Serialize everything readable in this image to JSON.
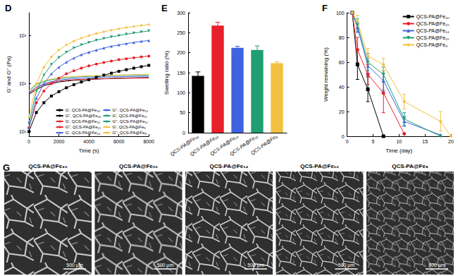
{
  "chart_data": [
    {
      "title": "D",
      "type": "line",
      "x_label": "Time (s)",
      "y_label": "G' and G'' (Pa)",
      "log": "y",
      "xlim": [
        0,
        8000
      ],
      "xticks": [
        0,
        2000,
        4000,
        6000,
        8000
      ],
      "ylim": [
        8,
        3000
      ],
      "yticks": [
        {
          "value": 10,
          "label": "10¹"
        },
        {
          "value": 100,
          "label": "10²"
        },
        {
          "value": 1000,
          "label": "10³"
        }
      ],
      "grid": false,
      "legend": "lower right",
      "x": [
        0,
        500,
        1000,
        1500,
        2000,
        2500,
        3000,
        3500,
        4000,
        4500,
        5000,
        5500,
        6000,
        6500,
        7000,
        7500,
        8000
      ],
      "series": [
        {
          "name": "G', QCS-PA@Fe₄₀",
          "color": "#000000",
          "marker": "square",
          "line_style": "solid",
          "values": [
            10,
            25,
            40,
            55,
            68,
            82,
            95,
            108,
            120,
            135,
            150,
            165,
            180,
            195,
            210,
            225,
            240
          ]
        },
        {
          "name": "G'', QCS-PA@Fe₄₀",
          "color": "#000000",
          "marker": "none",
          "line_style": "solid",
          "values": [
            60,
            75,
            90,
            100,
            108,
            113,
            117,
            120,
            122,
            124,
            126,
            128,
            130,
            131,
            132,
            133,
            134
          ]
        },
        {
          "name": "G', QCS-PA@Fe₂₀",
          "color": "#e8202a",
          "marker": "circle",
          "line_style": "solid",
          "values": [
            12,
            40,
            70,
            100,
            130,
            160,
            185,
            210,
            235,
            255,
            275,
            295,
            315,
            330,
            345,
            360,
            375
          ]
        },
        {
          "name": "G'', QCS-PA@Fe₂₀",
          "color": "#e8202a",
          "marker": "none",
          "line_style": "solid",
          "values": [
            62,
            80,
            95,
            105,
            112,
            117,
            120,
            122,
            124,
            125,
            126,
            127,
            128,
            129,
            130,
            130,
            131
          ]
        },
        {
          "name": "G', QCS-PA@Fe₁₄",
          "color": "#3f63e0",
          "marker": "triangle",
          "line_style": "solid",
          "values": [
            12,
            50,
            100,
            160,
            220,
            280,
            340,
            400,
            450,
            500,
            550,
            600,
            640,
            680,
            720,
            760,
            790
          ]
        },
        {
          "name": "G'', QCS-PA@Fe₁₄",
          "color": "#3f63e0",
          "marker": "none",
          "line_style": "solid",
          "values": [
            65,
            85,
            100,
            110,
            118,
            123,
            127,
            130,
            132,
            134,
            136,
            138,
            139,
            140,
            141,
            142,
            143
          ]
        },
        {
          "name": "G', QCS-PA@Fe₁₀",
          "color": "#1e9e72",
          "marker": "inverted triangle",
          "line_style": "solid",
          "values": [
            15,
            70,
            150,
            250,
            350,
            450,
            550,
            640,
            720,
            800,
            870,
            940,
            1000,
            1070,
            1130,
            1190,
            1250
          ]
        },
        {
          "name": "G'', QCS-PA@Fe₁₀",
          "color": "#1e9e72",
          "marker": "none",
          "line_style": "solid",
          "values": [
            70,
            95,
            110,
            120,
            127,
            132,
            136,
            139,
            141,
            143,
            145,
            147,
            148,
            149,
            150,
            151,
            152
          ]
        },
        {
          "name": "G', QCS-PA@Fe₈",
          "color": "#f2c040",
          "marker": "diamond",
          "line_style": "solid",
          "values": [
            20,
            100,
            220,
            360,
            500,
            640,
            770,
            890,
            1000,
            1100,
            1200,
            1300,
            1390,
            1470,
            1550,
            1630,
            1700
          ]
        },
        {
          "name": "G'', QCS-PA@Fe₈",
          "color": "#f2c040",
          "marker": "none",
          "line_style": "solid",
          "values": [
            72,
            100,
            115,
            125,
            132,
            137,
            140,
            143,
            145,
            147,
            148,
            150,
            151,
            152,
            153,
            154,
            155
          ]
        }
      ]
    },
    {
      "title": "E",
      "type": "bar",
      "y_label": "Swelling ratio (%)",
      "categories": [
        "QCS-PA@Fe₄₀",
        "QCS-PA@Fe₂₀",
        "QCS-PA@Fe₁₄",
        "QCS-PA@Fe₁₀",
        "QCS-PA@Fe₈"
      ],
      "values": [
        142,
        268,
        212,
        207,
        174
      ],
      "errors": [
        10,
        8,
        4,
        10,
        3
      ],
      "colors": [
        "#000000",
        "#e8202a",
        "#3f63e0",
        "#1e9e72",
        "#f2c040"
      ],
      "ylim": [
        0,
        300
      ],
      "yticks": [
        0,
        50,
        100,
        150,
        200,
        250,
        300
      ],
      "grid": false
    },
    {
      "title": "F",
      "type": "line",
      "x_label": "Time (day)",
      "y_label": "Weight remaining (%)",
      "xlim": [
        0,
        20
      ],
      "xticks": [
        0,
        5,
        10,
        15,
        20
      ],
      "ylim": [
        0,
        100
      ],
      "yticks": [
        0,
        20,
        40,
        60,
        80,
        100
      ],
      "grid": false,
      "legend": "upper right",
      "series": [
        {
          "name": "QCS-PA@Fe₄₀",
          "color": "#000000",
          "marker": "square",
          "line_style": "solid",
          "x": [
            1,
            2,
            4,
            7
          ],
          "values": [
            100,
            58,
            38,
            0
          ],
          "errors": [
            0,
            12,
            10,
            0
          ]
        },
        {
          "name": "QCS-PA@Fe₂₀",
          "color": "#e8202a",
          "marker": "circle",
          "line_style": "solid",
          "x": [
            1,
            2,
            4,
            7,
            11
          ],
          "values": [
            100,
            70,
            50,
            35,
            2
          ],
          "errors": [
            0,
            10,
            8,
            16,
            0
          ]
        },
        {
          "name": "QCS-PA@Fe₁₄",
          "color": "#3f63e0",
          "marker": "triangle",
          "line_style": "solid",
          "x": [
            1,
            2,
            4,
            7,
            11,
            18
          ],
          "values": [
            100,
            88,
            57,
            45,
            12,
            1
          ],
          "errors": [
            0,
            4,
            6,
            8,
            4,
            0
          ]
        },
        {
          "name": "QCS-PA@Fe₁₀",
          "color": "#1e9e72",
          "marker": "inverted triangle",
          "line_style": "solid",
          "x": [
            1,
            2,
            4,
            7,
            11,
            18
          ],
          "values": [
            100,
            90,
            60,
            50,
            14,
            0
          ],
          "errors": [
            0,
            5,
            7,
            6,
            5,
            0
          ]
        },
        {
          "name": "QCS-PA@Fe₈",
          "color": "#f2c040",
          "marker": "diamond",
          "line_style": "solid",
          "x": [
            1,
            2,
            4,
            7,
            11,
            18,
            20
          ],
          "values": [
            100,
            93,
            65,
            58,
            28,
            12,
            0
          ],
          "errors": [
            0,
            5,
            6,
            5,
            6,
            8,
            0
          ]
        }
      ]
    }
  ],
  "images": {
    "title": "G",
    "labels": [
      "QCS-PA@Fe₄₀",
      "QCS-PA@Fe₂₀",
      "QCS-PA@Fe₁₄",
      "QCS-PA@Fe₁₀",
      "QCS-PA@Fe₈"
    ],
    "scale_bar": "500 μm"
  }
}
